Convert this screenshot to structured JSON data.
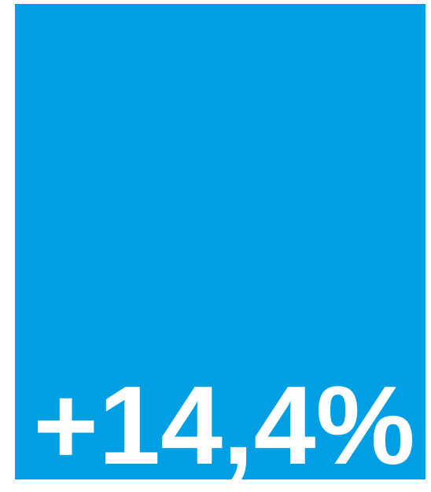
{
  "tile": {
    "label": "+14,4%"
  }
}
